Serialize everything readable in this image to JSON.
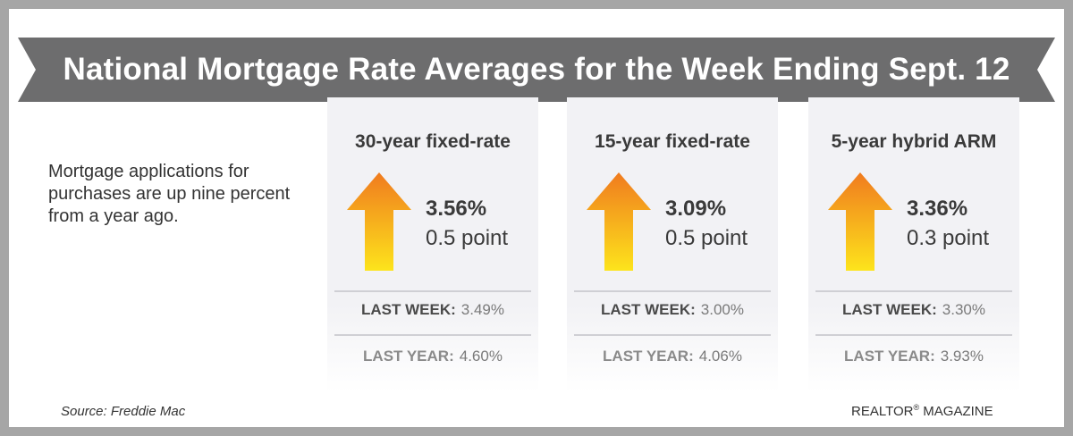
{
  "title": "National Mortgage Rate Averages for the Week Ending Sept. 12",
  "intro": "Mortgage applications for purchases are up nine percent from a year ago.",
  "cards": [
    {
      "title": "30-year fixed-rate",
      "rate": "3.56%",
      "change": "0.5 point",
      "last_week_label": "LAST WEEK:",
      "last_week": "3.49%",
      "last_year_label": "LAST YEAR:",
      "last_year": "4.60%"
    },
    {
      "title": "15-year fixed-rate",
      "rate": "3.09%",
      "change": "0.5 point",
      "last_week_label": "LAST WEEK:",
      "last_week": "3.00%",
      "last_year_label": "LAST YEAR:",
      "last_year": "4.06%"
    },
    {
      "title": "5-year hybrid ARM",
      "rate": "3.36%",
      "change": "0.3 point",
      "last_week_label": "LAST WEEK:",
      "last_week": "3.30%",
      "last_year_label": "LAST YEAR:",
      "last_year": "3.93%"
    }
  ],
  "source": "Source: Freddie Mac",
  "brand": {
    "name": "REALTOR",
    "mark": "®",
    "suffix": " MAGAZINE"
  },
  "icons": {
    "trend": "up-arrow-icon"
  },
  "colors": {
    "banner": "#6d6d6e",
    "frame": "#a6a6a6",
    "arrow_top": "#f07b1e",
    "arrow_bottom": "#fde41c",
    "text": "#3a3a3a"
  }
}
